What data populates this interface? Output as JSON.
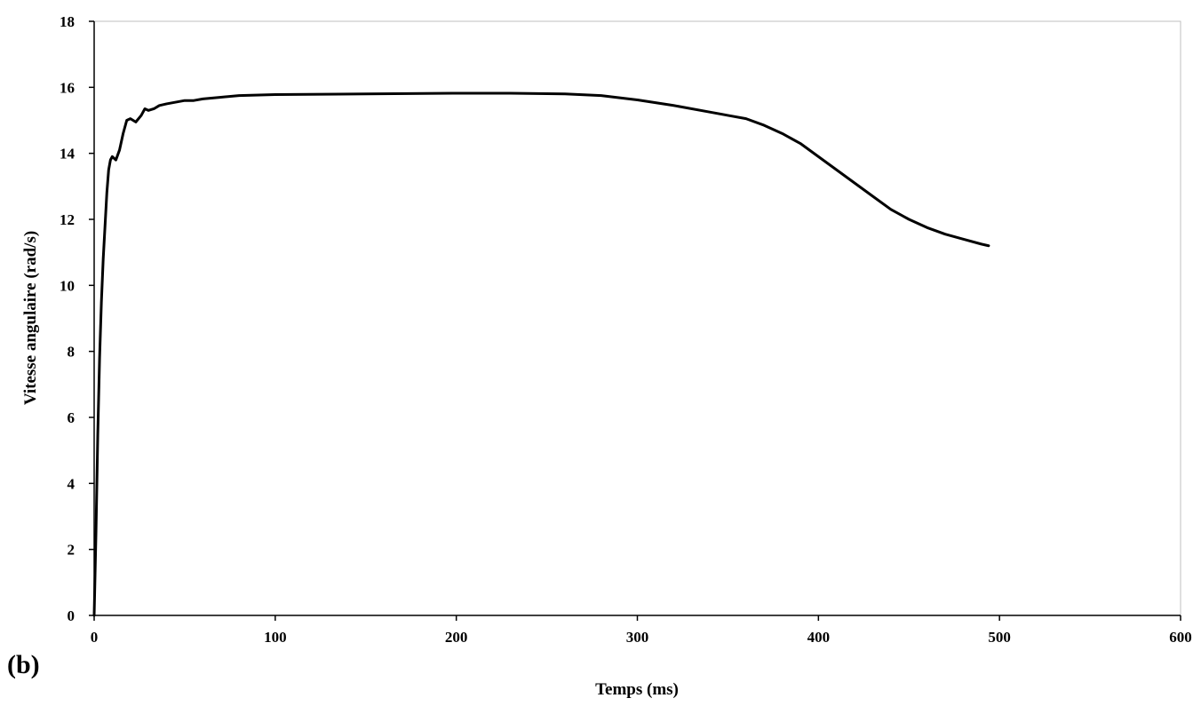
{
  "panel_label": "(b)",
  "chart_data": {
    "type": "line",
    "xlabel": "Temps (ms)",
    "ylabel": "Vitesse angulaire (rad/s)",
    "xlim": [
      0,
      600
    ],
    "ylim": [
      0,
      18
    ],
    "x_ticks": [
      0,
      100,
      200,
      300,
      400,
      500,
      600
    ],
    "y_ticks": [
      0,
      2,
      4,
      6,
      8,
      10,
      12,
      14,
      16,
      18
    ],
    "grid": false,
    "series": [
      {
        "color": "#000000",
        "x": [
          0,
          1,
          2,
          3,
          4,
          5,
          6,
          7,
          8,
          9,
          10,
          12,
          14,
          16,
          18,
          20,
          23,
          26,
          28,
          30,
          33,
          36,
          40,
          45,
          50,
          55,
          60,
          70,
          80,
          100,
          150,
          200,
          230,
          260,
          280,
          300,
          320,
          340,
          350,
          360,
          370,
          380,
          390,
          400,
          410,
          420,
          430,
          440,
          450,
          460,
          470,
          480,
          490,
          494
        ],
        "y": [
          0,
          2.5,
          5.5,
          7.8,
          9.5,
          10.8,
          11.8,
          12.8,
          13.5,
          13.8,
          13.9,
          13.8,
          14.1,
          14.6,
          15.0,
          15.05,
          14.95,
          15.15,
          15.35,
          15.3,
          15.35,
          15.45,
          15.5,
          15.55,
          15.6,
          15.6,
          15.65,
          15.7,
          15.75,
          15.78,
          15.8,
          15.82,
          15.82,
          15.8,
          15.75,
          15.62,
          15.45,
          15.25,
          15.15,
          15.05,
          14.85,
          14.6,
          14.3,
          13.9,
          13.5,
          13.1,
          12.7,
          12.3,
          12.0,
          11.75,
          11.55,
          11.4,
          11.25,
          11.2
        ]
      }
    ]
  }
}
